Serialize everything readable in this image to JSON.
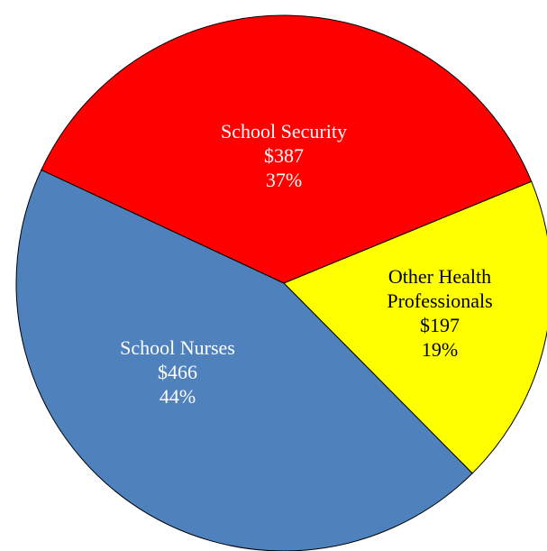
{
  "chart_data": {
    "type": "pie",
    "categories": [
      "School Security",
      "Other Health Professionals",
      "School Nurses"
    ],
    "values": [
      387,
      197,
      466
    ],
    "value_labels": [
      "$387",
      "$197",
      "$466"
    ],
    "percent_labels": [
      "37%",
      "19%",
      "44%"
    ],
    "colors": [
      "#ff0000",
      "#ffff00",
      "#4f81bd"
    ],
    "label_colors": [
      "#ffffff",
      "#000000",
      "#ffffff"
    ]
  }
}
